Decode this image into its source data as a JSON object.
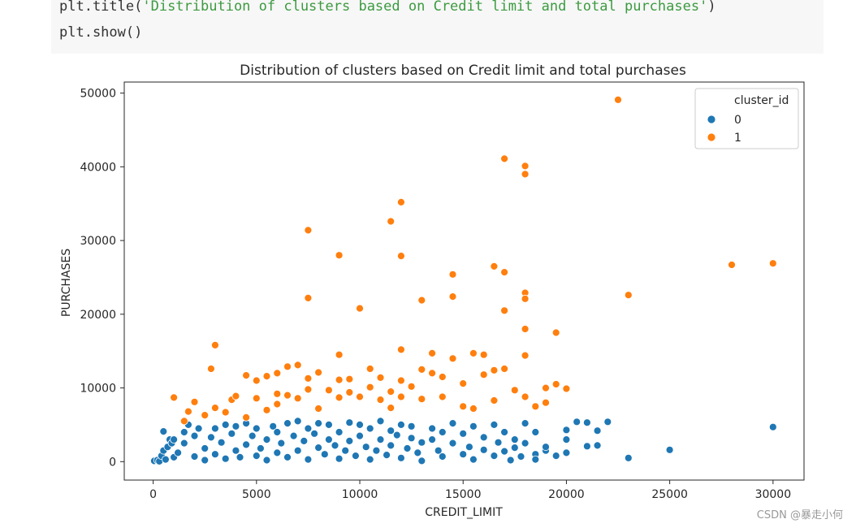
{
  "code": {
    "line1_prefix": "plt.title(",
    "line1_string": "'Distribution of clusters based on Credit limit and total purchases'",
    "line1_suffix": ")",
    "line2": "plt.show()"
  },
  "watermark": "CSDN @暴走小何",
  "colors": {
    "cluster_0": "#1f77b4",
    "cluster_1": "#ff7f0e"
  },
  "chart_data": {
    "type": "scatter",
    "title": "Distribution of clusters based on Credit limit and total purchases",
    "xlabel": "CREDIT_LIMIT",
    "ylabel": "PURCHASES",
    "xlim": [
      -1400,
      31500
    ],
    "ylim": [
      -2500,
      51500
    ],
    "xticks": [
      0,
      5000,
      10000,
      15000,
      20000,
      25000,
      30000
    ],
    "yticks": [
      0,
      10000,
      20000,
      30000,
      40000,
      50000
    ],
    "grid": false,
    "legend": {
      "title": "cluster_id",
      "placement": "top-right"
    },
    "series": [
      {
        "name": "0",
        "color": "#1f77b4",
        "points": [
          [
            50,
            100
          ],
          [
            200,
            200
          ],
          [
            300,
            50
          ],
          [
            400,
            800
          ],
          [
            500,
            1500
          ],
          [
            500,
            4100
          ],
          [
            600,
            300
          ],
          [
            700,
            2000
          ],
          [
            800,
            3000
          ],
          [
            900,
            2500
          ],
          [
            1000,
            600
          ],
          [
            1000,
            3000
          ],
          [
            1200,
            1200
          ],
          [
            1500,
            2500
          ],
          [
            1500,
            4000
          ],
          [
            1700,
            5000
          ],
          [
            2000,
            700
          ],
          [
            2000,
            3500
          ],
          [
            2200,
            4500
          ],
          [
            2500,
            200
          ],
          [
            2500,
            1800
          ],
          [
            2800,
            3300
          ],
          [
            3000,
            4500
          ],
          [
            3000,
            1000
          ],
          [
            3300,
            2600
          ],
          [
            3500,
            400
          ],
          [
            3500,
            5000
          ],
          [
            3800,
            3800
          ],
          [
            4000,
            1500
          ],
          [
            4000,
            4800
          ],
          [
            4200,
            600
          ],
          [
            4500,
            2300
          ],
          [
            4500,
            5200
          ],
          [
            4800,
            3500
          ],
          [
            5000,
            800
          ],
          [
            5000,
            4500
          ],
          [
            5200,
            1800
          ],
          [
            5500,
            3000
          ],
          [
            5500,
            200
          ],
          [
            5800,
            4800
          ],
          [
            6000,
            1200
          ],
          [
            6000,
            4000
          ],
          [
            6200,
            2500
          ],
          [
            6500,
            5200
          ],
          [
            6500,
            600
          ],
          [
            6800,
            3500
          ],
          [
            7000,
            1500
          ],
          [
            7000,
            5500
          ],
          [
            7300,
            2800
          ],
          [
            7500,
            4500
          ],
          [
            7500,
            300
          ],
          [
            7800,
            3800
          ],
          [
            8000,
            1900
          ],
          [
            8000,
            5200
          ],
          [
            8300,
            1000
          ],
          [
            8500,
            3000
          ],
          [
            8500,
            5000
          ],
          [
            8800,
            2200
          ],
          [
            9000,
            400
          ],
          [
            9000,
            4000
          ],
          [
            9300,
            1500
          ],
          [
            9500,
            5300
          ],
          [
            9500,
            2800
          ],
          [
            9800,
            800
          ],
          [
            10000,
            3500
          ],
          [
            10000,
            5000
          ],
          [
            10300,
            2000
          ],
          [
            10500,
            4500
          ],
          [
            10500,
            300
          ],
          [
            10800,
            1500
          ],
          [
            11000,
            3000
          ],
          [
            11000,
            5500
          ],
          [
            11300,
            900
          ],
          [
            11500,
            4200
          ],
          [
            11500,
            2200
          ],
          [
            11800,
            3600
          ],
          [
            12000,
            500
          ],
          [
            12000,
            5000
          ],
          [
            12300,
            1800
          ],
          [
            12500,
            3200
          ],
          [
            12500,
            4800
          ],
          [
            12800,
            1200
          ],
          [
            13000,
            2600
          ],
          [
            13000,
            100
          ],
          [
            13500,
            4500
          ],
          [
            13500,
            3000
          ],
          [
            13800,
            1500
          ],
          [
            14000,
            700
          ],
          [
            14000,
            4000
          ],
          [
            14500,
            2500
          ],
          [
            14500,
            5200
          ],
          [
            15000,
            1000
          ],
          [
            15000,
            3800
          ],
          [
            15300,
            2000
          ],
          [
            15500,
            300
          ],
          [
            15500,
            4800
          ],
          [
            16000,
            1600
          ],
          [
            16000,
            3300
          ],
          [
            16500,
            800
          ],
          [
            16500,
            5000
          ],
          [
            16700,
            2600
          ],
          [
            17000,
            1400
          ],
          [
            17000,
            4000
          ],
          [
            17300,
            200
          ],
          [
            17500,
            3000
          ],
          [
            17500,
            1900
          ],
          [
            17800,
            700
          ],
          [
            18000,
            2500
          ],
          [
            18000,
            5200
          ],
          [
            18500,
            1000
          ],
          [
            18500,
            4000
          ],
          [
            18500,
            300
          ],
          [
            19000,
            1500
          ],
          [
            19000,
            2000
          ],
          [
            19500,
            800
          ],
          [
            20000,
            3000
          ],
          [
            20000,
            4300
          ],
          [
            20000,
            1200
          ],
          [
            20500,
            5400
          ],
          [
            21000,
            5300
          ],
          [
            21000,
            2100
          ],
          [
            21500,
            4200
          ],
          [
            21500,
            2200
          ],
          [
            22000,
            5400
          ],
          [
            23000,
            500
          ],
          [
            25000,
            1600
          ],
          [
            30000,
            4700
          ]
        ]
      },
      {
        "name": "1",
        "color": "#ff7f0e",
        "points": [
          [
            1000,
            8700
          ],
          [
            1500,
            5500
          ],
          [
            1700,
            6800
          ],
          [
            2000,
            8100
          ],
          [
            2500,
            6300
          ],
          [
            2800,
            12600
          ],
          [
            3000,
            15800
          ],
          [
            3000,
            7300
          ],
          [
            3500,
            6700
          ],
          [
            3800,
            8400
          ],
          [
            4000,
            8900
          ],
          [
            4500,
            11700
          ],
          [
            4500,
            6000
          ],
          [
            5000,
            11000
          ],
          [
            5000,
            8600
          ],
          [
            5500,
            7000
          ],
          [
            5500,
            11600
          ],
          [
            6000,
            12000
          ],
          [
            6000,
            9200
          ],
          [
            6000,
            7800
          ],
          [
            6500,
            12900
          ],
          [
            6500,
            9000
          ],
          [
            7000,
            13100
          ],
          [
            7000,
            8600
          ],
          [
            7500,
            31400
          ],
          [
            7500,
            22200
          ],
          [
            7500,
            11300
          ],
          [
            7500,
            9800
          ],
          [
            8000,
            7200
          ],
          [
            8000,
            12100
          ],
          [
            8500,
            9700
          ],
          [
            9000,
            28000
          ],
          [
            9000,
            14500
          ],
          [
            9000,
            11100
          ],
          [
            9000,
            8700
          ],
          [
            9500,
            9400
          ],
          [
            9500,
            11200
          ],
          [
            10000,
            20800
          ],
          [
            10000,
            8800
          ],
          [
            10500,
            12600
          ],
          [
            10500,
            10100
          ],
          [
            11000,
            11400
          ],
          [
            11000,
            8400
          ],
          [
            11500,
            32600
          ],
          [
            11500,
            9500
          ],
          [
            11500,
            7300
          ],
          [
            12000,
            35200
          ],
          [
            12000,
            27900
          ],
          [
            12000,
            15200
          ],
          [
            12000,
            11000
          ],
          [
            12000,
            8800
          ],
          [
            12500,
            10200
          ],
          [
            13000,
            21900
          ],
          [
            13000,
            12500
          ],
          [
            13000,
            8500
          ],
          [
            13500,
            14700
          ],
          [
            13500,
            12000
          ],
          [
            14000,
            11500
          ],
          [
            14000,
            8800
          ],
          [
            14500,
            25400
          ],
          [
            14500,
            22400
          ],
          [
            14500,
            14000
          ],
          [
            15000,
            10600
          ],
          [
            15000,
            7500
          ],
          [
            15500,
            14700
          ],
          [
            15500,
            7200
          ],
          [
            16000,
            14500
          ],
          [
            16000,
            11800
          ],
          [
            16500,
            26500
          ],
          [
            16500,
            12400
          ],
          [
            16500,
            8300
          ],
          [
            17000,
            41100
          ],
          [
            17000,
            25700
          ],
          [
            17000,
            20500
          ],
          [
            17000,
            12600
          ],
          [
            17500,
            9700
          ],
          [
            18000,
            40100
          ],
          [
            18000,
            39000
          ],
          [
            18000,
            22900
          ],
          [
            18000,
            22100
          ],
          [
            18000,
            18000
          ],
          [
            18000,
            14400
          ],
          [
            18000,
            8800
          ],
          [
            18500,
            7500
          ],
          [
            19000,
            8000
          ],
          [
            19000,
            10000
          ],
          [
            19500,
            17500
          ],
          [
            19500,
            10500
          ],
          [
            20000,
            9900
          ],
          [
            22500,
            49100
          ],
          [
            23000,
            22600
          ],
          [
            28000,
            26700
          ],
          [
            30000,
            26900
          ]
        ]
      }
    ]
  }
}
